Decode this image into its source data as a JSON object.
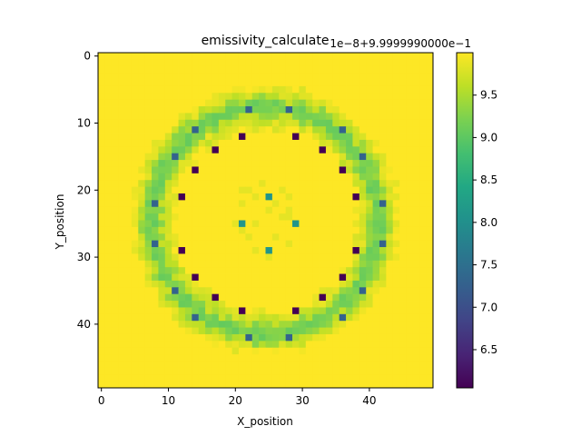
{
  "chart_data": {
    "type": "heatmap",
    "title": "emissivity_calculate",
    "xlabel": "X_position",
    "ylabel": "Y_position",
    "grid_size": [
      50,
      50
    ],
    "xlim": [
      -0.5,
      49.5
    ],
    "ylim": [
      49.5,
      -0.5
    ],
    "xticks": [
      0,
      10,
      20,
      30,
      40
    ],
    "yticks": [
      0,
      10,
      20,
      30,
      40
    ],
    "colormap": "viridis",
    "colorbar": {
      "offset_label": "1e−8+9.9999990000e−1",
      "vmin": 6.05,
      "vmax": 10.0,
      "ticks": [
        6.5,
        7.0,
        7.5,
        8.0,
        8.5,
        9.0,
        9.5
      ],
      "tick_labels": [
        "6.5",
        "7.0",
        "7.5",
        "8.0",
        "8.5",
        "9.0",
        "9.5"
      ]
    },
    "background_value": 10.0,
    "special_cells": [
      {
        "x": 22,
        "y": 8,
        "value": 7.3
      },
      {
        "x": 28,
        "y": 8,
        "value": 7.3
      },
      {
        "x": 8,
        "y": 22,
        "value": 7.3
      },
      {
        "x": 8,
        "y": 28,
        "value": 7.3
      },
      {
        "x": 42,
        "y": 22,
        "value": 7.3
      },
      {
        "x": 42,
        "y": 28,
        "value": 7.3
      },
      {
        "x": 22,
        "y": 42,
        "value": 7.3
      },
      {
        "x": 28,
        "y": 42,
        "value": 7.3
      },
      {
        "x": 14,
        "y": 11,
        "value": 7.3
      },
      {
        "x": 36,
        "y": 11,
        "value": 7.3
      },
      {
        "x": 11,
        "y": 15,
        "value": 7.3
      },
      {
        "x": 39,
        "y": 15,
        "value": 7.3
      },
      {
        "x": 11,
        "y": 35,
        "value": 7.3
      },
      {
        "x": 39,
        "y": 35,
        "value": 7.3
      },
      {
        "x": 14,
        "y": 39,
        "value": 7.3
      },
      {
        "x": 36,
        "y": 39,
        "value": 7.3
      },
      {
        "x": 21,
        "y": 12,
        "value": 6.05
      },
      {
        "x": 29,
        "y": 12,
        "value": 6.05
      },
      {
        "x": 17,
        "y": 14,
        "value": 6.05
      },
      {
        "x": 33,
        "y": 14,
        "value": 6.05
      },
      {
        "x": 14,
        "y": 17,
        "value": 6.05
      },
      {
        "x": 36,
        "y": 17,
        "value": 6.05
      },
      {
        "x": 12,
        "y": 21,
        "value": 6.05
      },
      {
        "x": 38,
        "y": 21,
        "value": 6.05
      },
      {
        "x": 12,
        "y": 29,
        "value": 6.05
      },
      {
        "x": 38,
        "y": 29,
        "value": 6.05
      },
      {
        "x": 14,
        "y": 33,
        "value": 6.05
      },
      {
        "x": 36,
        "y": 33,
        "value": 6.05
      },
      {
        "x": 17,
        "y": 36,
        "value": 6.05
      },
      {
        "x": 33,
        "y": 36,
        "value": 6.05
      },
      {
        "x": 21,
        "y": 38,
        "value": 6.05
      },
      {
        "x": 29,
        "y": 38,
        "value": 6.05
      },
      {
        "x": 25,
        "y": 21,
        "value": 8.1
      },
      {
        "x": 21,
        "y": 25,
        "value": 8.1
      },
      {
        "x": 29,
        "y": 25,
        "value": 8.1
      },
      {
        "x": 25,
        "y": 29,
        "value": 8.1
      }
    ]
  }
}
